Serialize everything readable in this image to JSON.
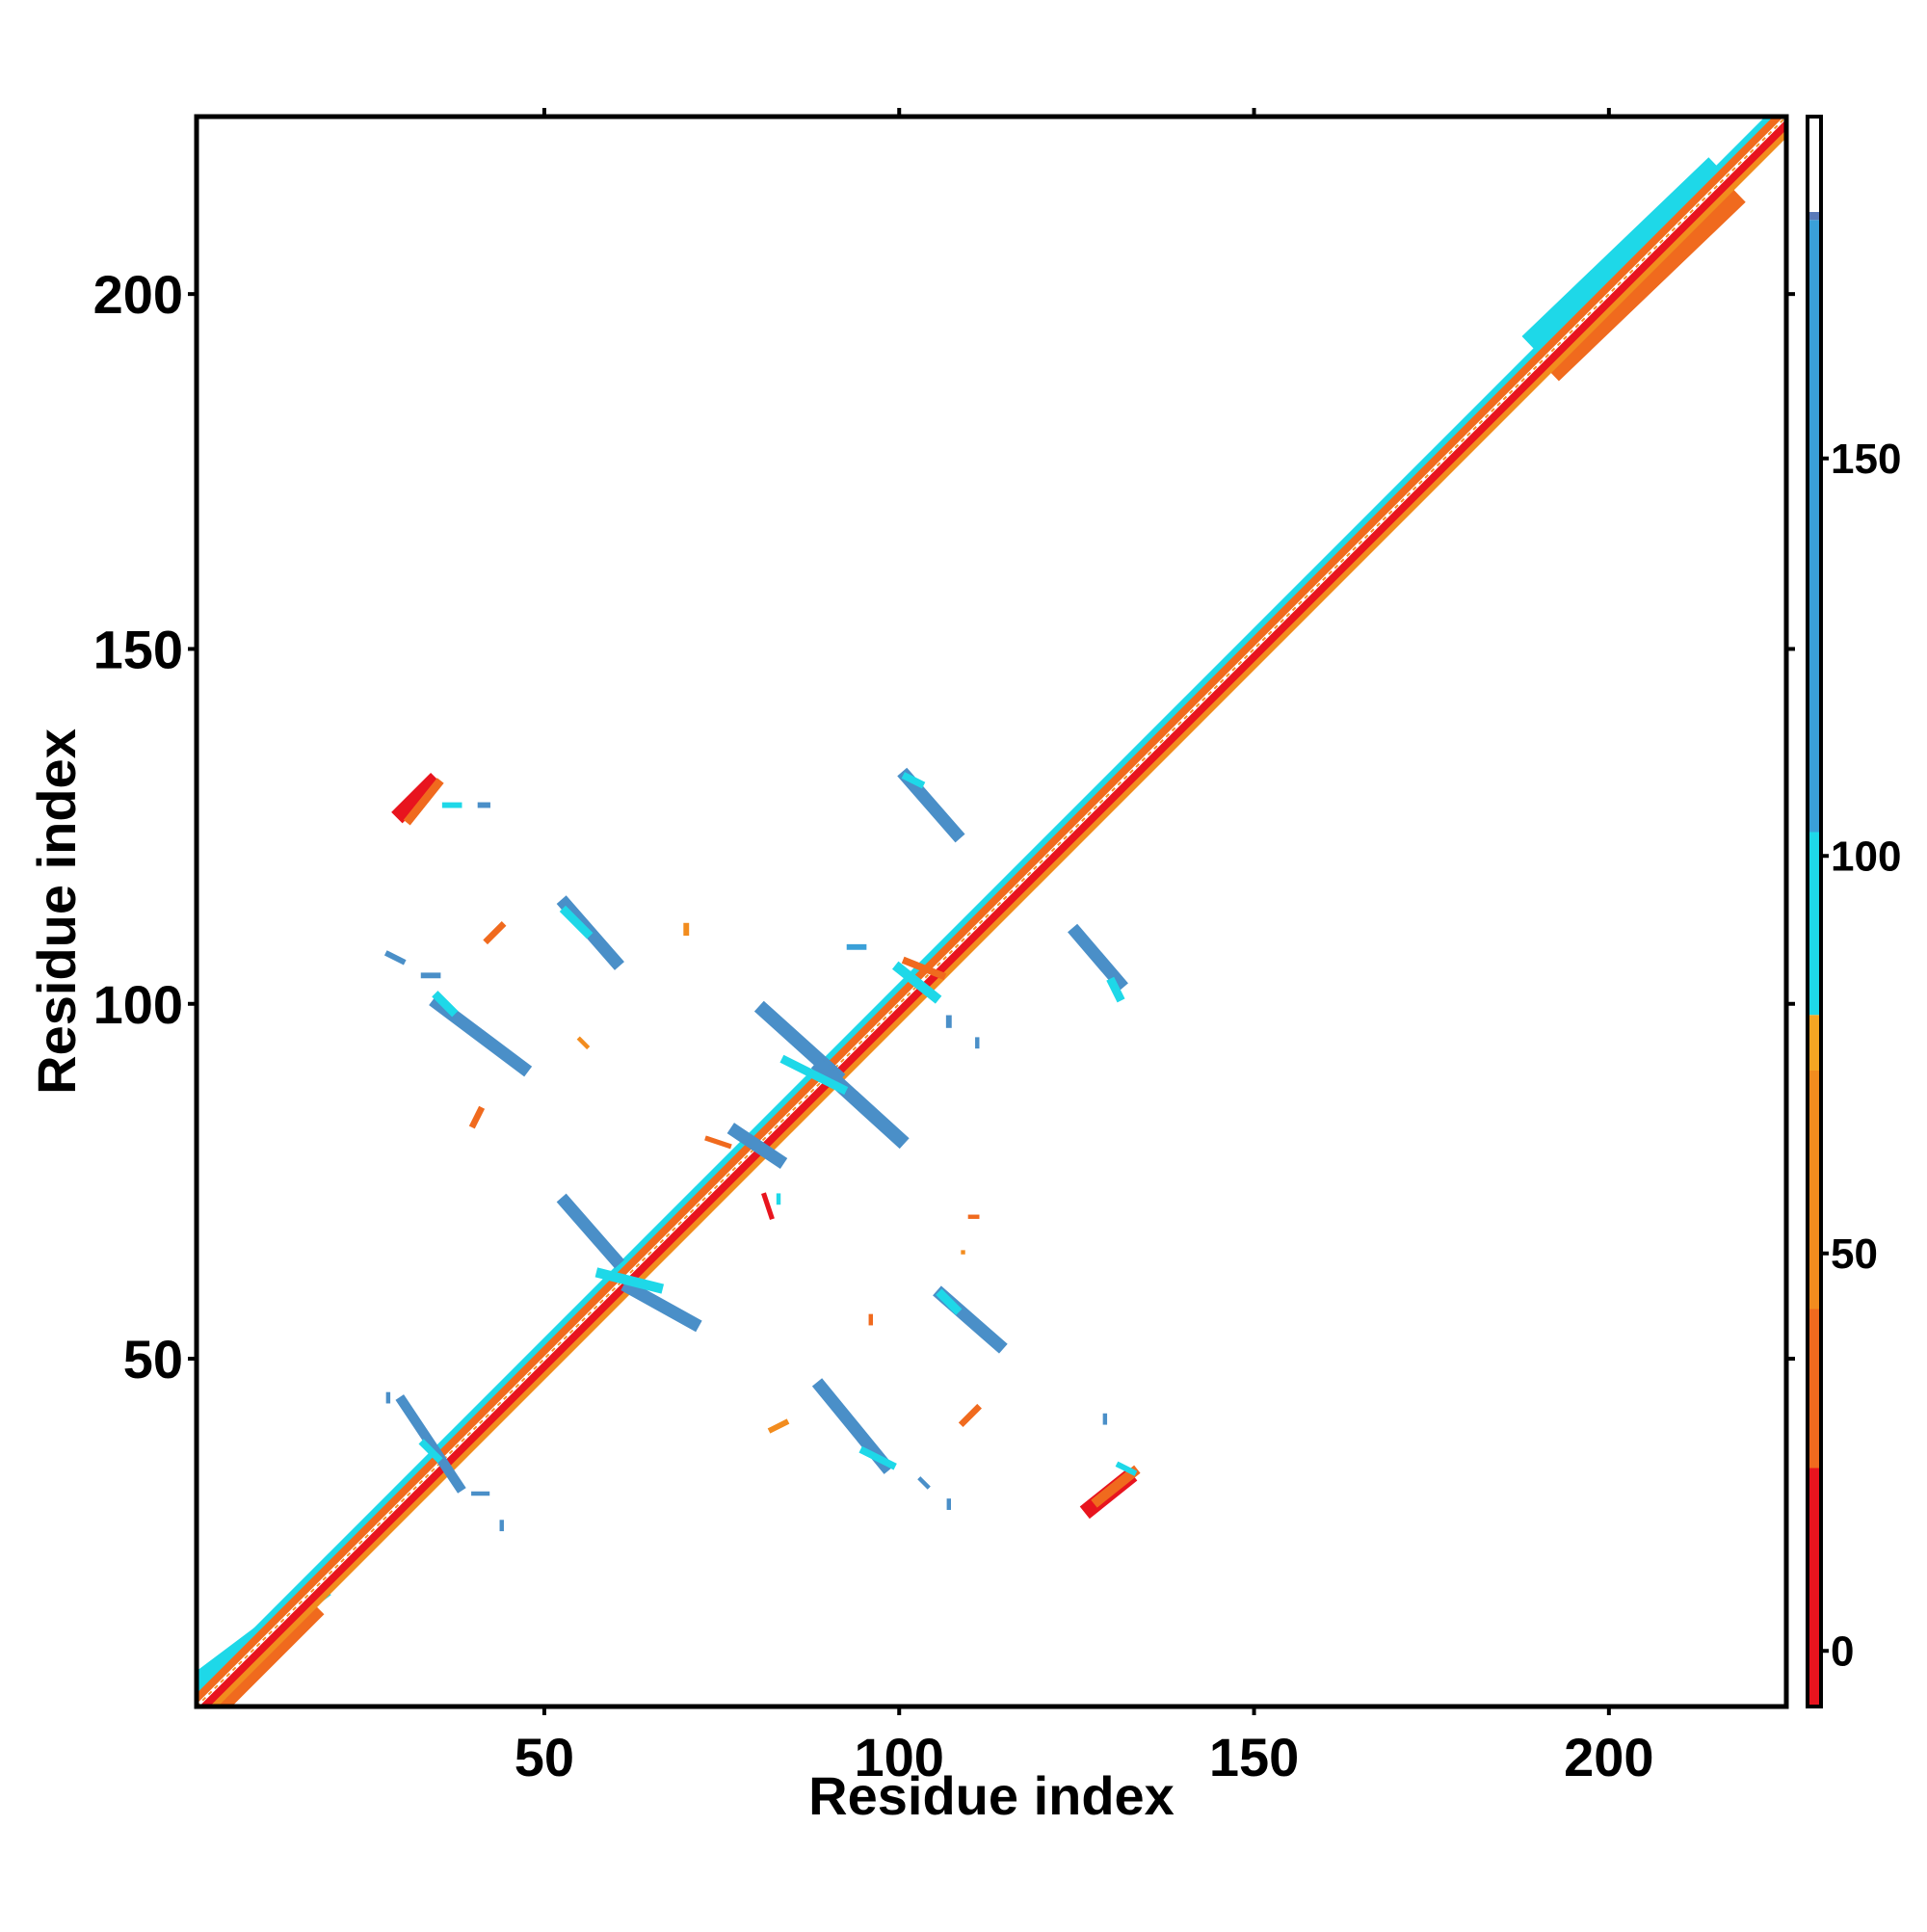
{
  "chart_data": {
    "type": "heatmap",
    "title": "",
    "xlabel": "Residue index",
    "ylabel": "Residue index",
    "xlim": [
      1,
      225
    ],
    "ylim": [
      1,
      225
    ],
    "x_ticks": [
      50,
      100,
      150,
      200
    ],
    "y_ticks": [
      50,
      100,
      150,
      200
    ],
    "grid": false,
    "colorbar": {
      "ticks": [
        0,
        50,
        100,
        150
      ],
      "range": [
        -7,
        193
      ],
      "bands": [
        {
          "from": -7,
          "to": 23,
          "color": "#e8141e"
        },
        {
          "from": 23,
          "to": 43,
          "color": "#f06a1e"
        },
        {
          "from": 43,
          "to": 73,
          "color": "#f28c1e"
        },
        {
          "from": 73,
          "to": 80,
          "color": "#f5a623"
        },
        {
          "from": 80,
          "to": 103,
          "color": "#1ed8e8"
        },
        {
          "from": 103,
          "to": 180,
          "color": "#3aa0d8"
        },
        {
          "from": 180,
          "to": 181,
          "color": "#5a7ab8"
        },
        {
          "from": 181,
          "to": 193,
          "color": "#ffffff"
        }
      ]
    },
    "colors": {
      "red": "#e8141e",
      "orange_red": "#f06a1e",
      "orange": "#f28c1e",
      "cyan": "#1ed8e8",
      "steel_blue": "#4a8fc8"
    },
    "diagonal": {
      "from": 1,
      "to": 225
    },
    "contact_segments": [
      {
        "x1": 30,
        "y1": 127,
        "x2": 34,
        "y2": 131,
        "color": "#e8141e",
        "w": 2.2
      },
      {
        "x1": 31,
        "y1": 126,
        "x2": 35,
        "y2": 131,
        "color": "#f06a1e",
        "w": 1.2
      },
      {
        "x1": 36,
        "y1": 128,
        "x2": 38,
        "y2": 128,
        "color": "#1ed8e8",
        "w": 0.8
      },
      {
        "x1": 41,
        "y1": 128,
        "x2": 42,
        "y2": 128,
        "color": "#4a8fc8",
        "w": 0.8
      },
      {
        "x1": 53,
        "y1": 114,
        "x2": 60,
        "y2": 106,
        "color": "#4a8fc8",
        "w": 1.8
      },
      {
        "x1": 53,
        "y1": 113,
        "x2": 56,
        "y2": 110,
        "color": "#1ed8e8",
        "w": 1.2
      },
      {
        "x1": 42,
        "y1": 109,
        "x2": 44,
        "y2": 111,
        "color": "#f06a1e",
        "w": 0.9
      },
      {
        "x1": 70,
        "y1": 110,
        "x2": 70,
        "y2": 111,
        "color": "#f28c1e",
        "w": 0.8
      },
      {
        "x1": 28,
        "y1": 107,
        "x2": 30,
        "y2": 106,
        "color": "#4a8fc8",
        "w": 0.8
      },
      {
        "x1": 33,
        "y1": 104,
        "x2": 35,
        "y2": 104,
        "color": "#4a8fc8",
        "w": 0.8
      },
      {
        "x1": 35,
        "y1": 100,
        "x2": 47,
        "y2": 91,
        "color": "#4a8fc8",
        "w": 1.8
      },
      {
        "x1": 35,
        "y1": 101,
        "x2": 37,
        "y2": 99,
        "color": "#1ed8e8",
        "w": 1.2
      },
      {
        "x1": 40,
        "y1": 83,
        "x2": 41,
        "y2": 85,
        "color": "#f06a1e",
        "w": 0.9
      },
      {
        "x1": 55,
        "y1": 95,
        "x2": 56,
        "y2": 94,
        "color": "#f28c1e",
        "w": 0.6
      },
      {
        "x1": 81,
        "y1": 99,
        "x2": 91,
        "y2": 90,
        "color": "#4a8fc8",
        "w": 2.0
      },
      {
        "x1": 89,
        "y1": 91,
        "x2": 100,
        "y2": 81,
        "color": "#4a8fc8",
        "w": 2.0
      },
      {
        "x1": 84,
        "y1": 92,
        "x2": 92,
        "y2": 88,
        "color": "#1ed8e8",
        "w": 1.2
      },
      {
        "x1": 77,
        "y1": 82,
        "x2": 83,
        "y2": 78,
        "color": "#4a8fc8",
        "w": 1.8
      },
      {
        "x1": 73,
        "y1": 81,
        "x2": 76,
        "y2": 80,
        "color": "#f06a1e",
        "w": 0.7
      },
      {
        "x1": 53,
        "y1": 72,
        "x2": 60,
        "y2": 64,
        "color": "#4a8fc8",
        "w": 1.8
      },
      {
        "x1": 62,
        "y1": 60,
        "x2": 71,
        "y2": 55,
        "color": "#4a8fc8",
        "w": 1.8
      },
      {
        "x1": 58,
        "y1": 62,
        "x2": 66,
        "y2": 60,
        "color": "#1ed8e8",
        "w": 1.4
      },
      {
        "x1": 100,
        "y1": 105,
        "x2": 105,
        "y2": 101,
        "color": "#1ed8e8",
        "w": 1.4
      },
      {
        "x1": 101,
        "y1": 106,
        "x2": 106,
        "y2": 104,
        "color": "#f06a1e",
        "w": 1.0
      },
      {
        "x1": 107,
        "y1": 98,
        "x2": 107,
        "y2": 97,
        "color": "#4a8fc8",
        "w": 0.8
      },
      {
        "x1": 111,
        "y1": 95,
        "x2": 111,
        "y2": 94,
        "color": "#4a8fc8",
        "w": 0.6
      },
      {
        "x1": 93,
        "y1": 108,
        "x2": 95,
        "y2": 108,
        "color": "#3aa0d8",
        "w": 0.8
      },
      {
        "x1": 101,
        "y1": 132,
        "x2": 108,
        "y2": 124,
        "color": "#4a8fc8",
        "w": 1.8
      },
      {
        "x1": 101,
        "y1": 132,
        "x2": 103,
        "y2": 131,
        "color": "#1ed8e8",
        "w": 1.0
      },
      {
        "x1": 125,
        "y1": 110,
        "x2": 131,
        "y2": 103,
        "color": "#4a8fc8",
        "w": 1.8
      },
      {
        "x1": 130,
        "y1": 103,
        "x2": 131,
        "y2": 101,
        "color": "#1ed8e8",
        "w": 1.2
      },
      {
        "x1": 81,
        "y1": 73,
        "x2": 82,
        "y2": 70,
        "color": "#e8141e",
        "w": 0.7
      },
      {
        "x1": 83,
        "y1": 72,
        "x2": 83,
        "y2": 73,
        "color": "#1ed8e8",
        "w": 0.6
      },
      {
        "x1": 110,
        "y1": 70,
        "x2": 111,
        "y2": 70,
        "color": "#f06a1e",
        "w": 0.6
      },
      {
        "x1": 109,
        "y1": 65,
        "x2": 109,
        "y2": 65,
        "color": "#f28c1e",
        "w": 0.6
      },
      {
        "x1": 106,
        "y1": 59,
        "x2": 114,
        "y2": 52,
        "color": "#4a8fc8",
        "w": 1.8
      },
      {
        "x1": 106,
        "y1": 59,
        "x2": 108,
        "y2": 57,
        "color": "#1ed8e8",
        "w": 1.2
      },
      {
        "x1": 96,
        "y1": 56,
        "x2": 96,
        "y2": 55,
        "color": "#f06a1e",
        "w": 0.6
      },
      {
        "x1": 89,
        "y1": 46,
        "x2": 98,
        "y2": 35,
        "color": "#4a8fc8",
        "w": 1.8
      },
      {
        "x1": 95,
        "y1": 37,
        "x2": 99,
        "y2": 35,
        "color": "#1ed8e8",
        "w": 1.0
      },
      {
        "x1": 82,
        "y1": 40,
        "x2": 84,
        "y2": 41,
        "color": "#f28c1e",
        "w": 0.8
      },
      {
        "x1": 109,
        "y1": 41,
        "x2": 111,
        "y2": 43,
        "color": "#f06a1e",
        "w": 0.9
      },
      {
        "x1": 103,
        "y1": 33,
        "x2": 104,
        "y2": 32,
        "color": "#4a8fc8",
        "w": 0.6
      },
      {
        "x1": 107,
        "y1": 30,
        "x2": 107,
        "y2": 29,
        "color": "#4a8fc8",
        "w": 0.6
      },
      {
        "x1": 127,
        "y1": 29,
        "x2": 132,
        "y2": 33,
        "color": "#e8141e",
        "w": 2.2
      },
      {
        "x1": 128,
        "y1": 30,
        "x2": 133,
        "y2": 34,
        "color": "#f06a1e",
        "w": 1.4
      },
      {
        "x1": 131,
        "y1": 35,
        "x2": 133,
        "y2": 34,
        "color": "#1ed8e8",
        "w": 0.8
      },
      {
        "x1": 129,
        "y1": 42,
        "x2": 129,
        "y2": 41,
        "color": "#4a8fc8",
        "w": 0.6
      },
      {
        "x1": 30,
        "y1": 44,
        "x2": 38,
        "y2": 32,
        "color": "#4a8fc8",
        "w": 1.4
      },
      {
        "x1": 33,
        "y1": 38,
        "x2": 35,
        "y2": 36,
        "color": "#1ed8e8",
        "w": 1.0
      },
      {
        "x1": 40,
        "y1": 31,
        "x2": 42,
        "y2": 31,
        "color": "#4a8fc8",
        "w": 0.6
      },
      {
        "x1": 44,
        "y1": 26,
        "x2": 44,
        "y2": 27,
        "color": "#4a8fc8",
        "w": 0.6
      },
      {
        "x1": 28,
        "y1": 45,
        "x2": 28,
        "y2": 44,
        "color": "#4a8fc8",
        "w": 0.6
      }
    ],
    "diagonal_blobs": [
      {
        "x1": 2,
        "y1": 5,
        "x2": 18,
        "y2": 17,
        "color": "#1ed8e8",
        "w": 2.8
      },
      {
        "x1": 5,
        "y1": 2,
        "x2": 17,
        "y2": 14,
        "color": "#f06a1e",
        "w": 2.8
      },
      {
        "x1": 190,
        "y1": 194,
        "x2": 214,
        "y2": 217,
        "color": "#1ed8e8",
        "w": 3.2
      },
      {
        "x1": 193,
        "y1": 190,
        "x2": 217,
        "y2": 213,
        "color": "#f06a1e",
        "w": 3.2
      }
    ]
  }
}
